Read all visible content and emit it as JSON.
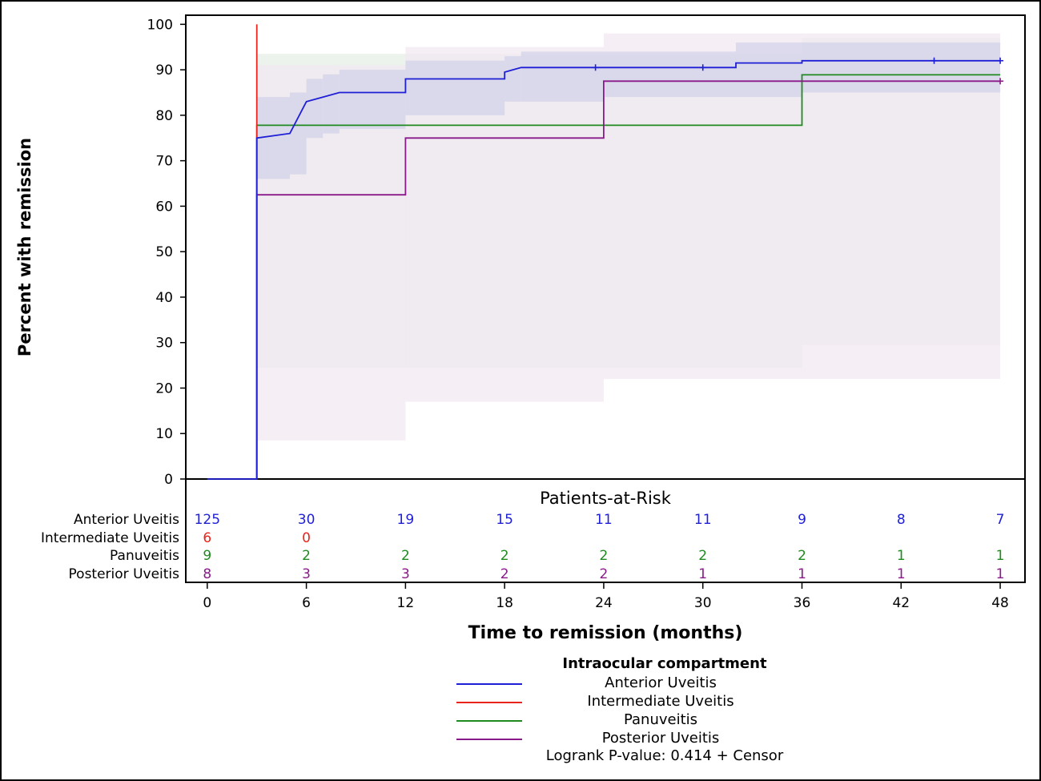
{
  "chart_data": {
    "type": "line",
    "step": true,
    "ylabel": "Percent with remission",
    "xlabel": "Time to remission (months)",
    "yticks": [
      0,
      10,
      20,
      30,
      40,
      50,
      60,
      70,
      80,
      90,
      100
    ],
    "xticks": [
      0,
      6,
      12,
      18,
      24,
      30,
      36,
      42,
      48
    ],
    "xlim": [
      -1.3,
      49.5
    ],
    "ylim": [
      0,
      102
    ],
    "series": [
      {
        "name": "Anterior Uveitis",
        "color": "#1f1fd6",
        "points": [
          [
            0,
            0
          ],
          [
            3,
            0
          ],
          [
            3,
            75
          ],
          [
            5,
            76
          ],
          [
            6,
            83
          ],
          [
            7,
            84
          ],
          [
            8,
            85
          ],
          [
            12,
            85
          ],
          [
            12,
            88
          ],
          [
            18,
            88
          ],
          [
            18,
            89.5
          ],
          [
            19,
            90.5
          ],
          [
            32,
            90.5
          ],
          [
            32,
            91.5
          ],
          [
            36,
            91.5
          ],
          [
            36,
            92
          ],
          [
            48,
            92
          ]
        ],
        "censor": [
          [
            23.5,
            90.5
          ],
          [
            30,
            90.5
          ],
          [
            44,
            92
          ],
          [
            48,
            92
          ]
        ],
        "band_color": "#c9cbe8",
        "band": [
          [
            3,
            66,
            84
          ],
          [
            5,
            67,
            85
          ],
          [
            6,
            75,
            88
          ],
          [
            7,
            76,
            89
          ],
          [
            8,
            77,
            90
          ],
          [
            12,
            80,
            92
          ],
          [
            18,
            83,
            93
          ],
          [
            19,
            83,
            94
          ],
          [
            24,
            84,
            94
          ],
          [
            32,
            84,
            96
          ],
          [
            36,
            85,
            96
          ],
          [
            48,
            85,
            96
          ]
        ]
      },
      {
        "name": "Intermediate Uveitis",
        "color": "#e8241c",
        "points": [
          [
            3,
            0
          ],
          [
            3,
            100
          ]
        ],
        "censor": []
      },
      {
        "name": "Panuveitis",
        "color": "#1f8a1f",
        "points": [
          [
            3,
            0
          ],
          [
            3,
            77.8
          ],
          [
            36,
            77.8
          ],
          [
            36,
            88.9
          ],
          [
            48,
            88.9
          ]
        ],
        "censor": [],
        "band_color": "#e6ede6",
        "band": [
          [
            3,
            24.5,
            93.5
          ],
          [
            36,
            29.5,
            97
          ],
          [
            48,
            29.5,
            97
          ]
        ]
      },
      {
        "name": "Posterior Uveitis",
        "color": "#8a1a8a",
        "points": [
          [
            3,
            0
          ],
          [
            3,
            62.5
          ],
          [
            12,
            62.5
          ],
          [
            12,
            75
          ],
          [
            24,
            75
          ],
          [
            24,
            87.5
          ],
          [
            48,
            87.5
          ]
        ],
        "censor": [
          [
            48,
            87.5
          ]
        ],
        "band_color": "#f1e8f1",
        "band": [
          [
            3,
            8.5,
            91
          ],
          [
            12,
            17,
            95
          ],
          [
            24,
            22,
            98
          ],
          [
            48,
            22,
            98
          ]
        ]
      }
    ],
    "risk_table": {
      "title": "Patients-at-Risk",
      "rows": [
        {
          "name": "Anterior Uveitis",
          "color": "#1f1fd6",
          "values": [
            "125",
            "30",
            "19",
            "15",
            "11",
            "11",
            "9",
            "8",
            "7"
          ]
        },
        {
          "name": "Intermediate Uveitis",
          "color": "#e8241c",
          "values": [
            "6",
            "0",
            "",
            "",
            "",
            "",
            "",
            "",
            ""
          ]
        },
        {
          "name": "Panuveitis",
          "color": "#1f8a1f",
          "values": [
            "9",
            "2",
            "2",
            "2",
            "2",
            "2",
            "2",
            "1",
            "1"
          ]
        },
        {
          "name": "Posterior Uveitis",
          "color": "#8a1a8a",
          "values": [
            "8",
            "3",
            "3",
            "2",
            "2",
            "1",
            "1",
            "1",
            "1"
          ]
        }
      ]
    },
    "legend": {
      "title": "Intraocular compartment",
      "items": [
        {
          "label": "Anterior Uveitis",
          "color": "#1f1fd6"
        },
        {
          "label": "Intermediate Uveitis",
          "color": "#e8241c"
        },
        {
          "label": "Panuveitis",
          "color": "#1f8a1f"
        },
        {
          "label": "Posterior Uveitis",
          "color": "#8a1a8a"
        }
      ],
      "footer": "Logrank P-value: 0.414  +  Censor"
    }
  }
}
